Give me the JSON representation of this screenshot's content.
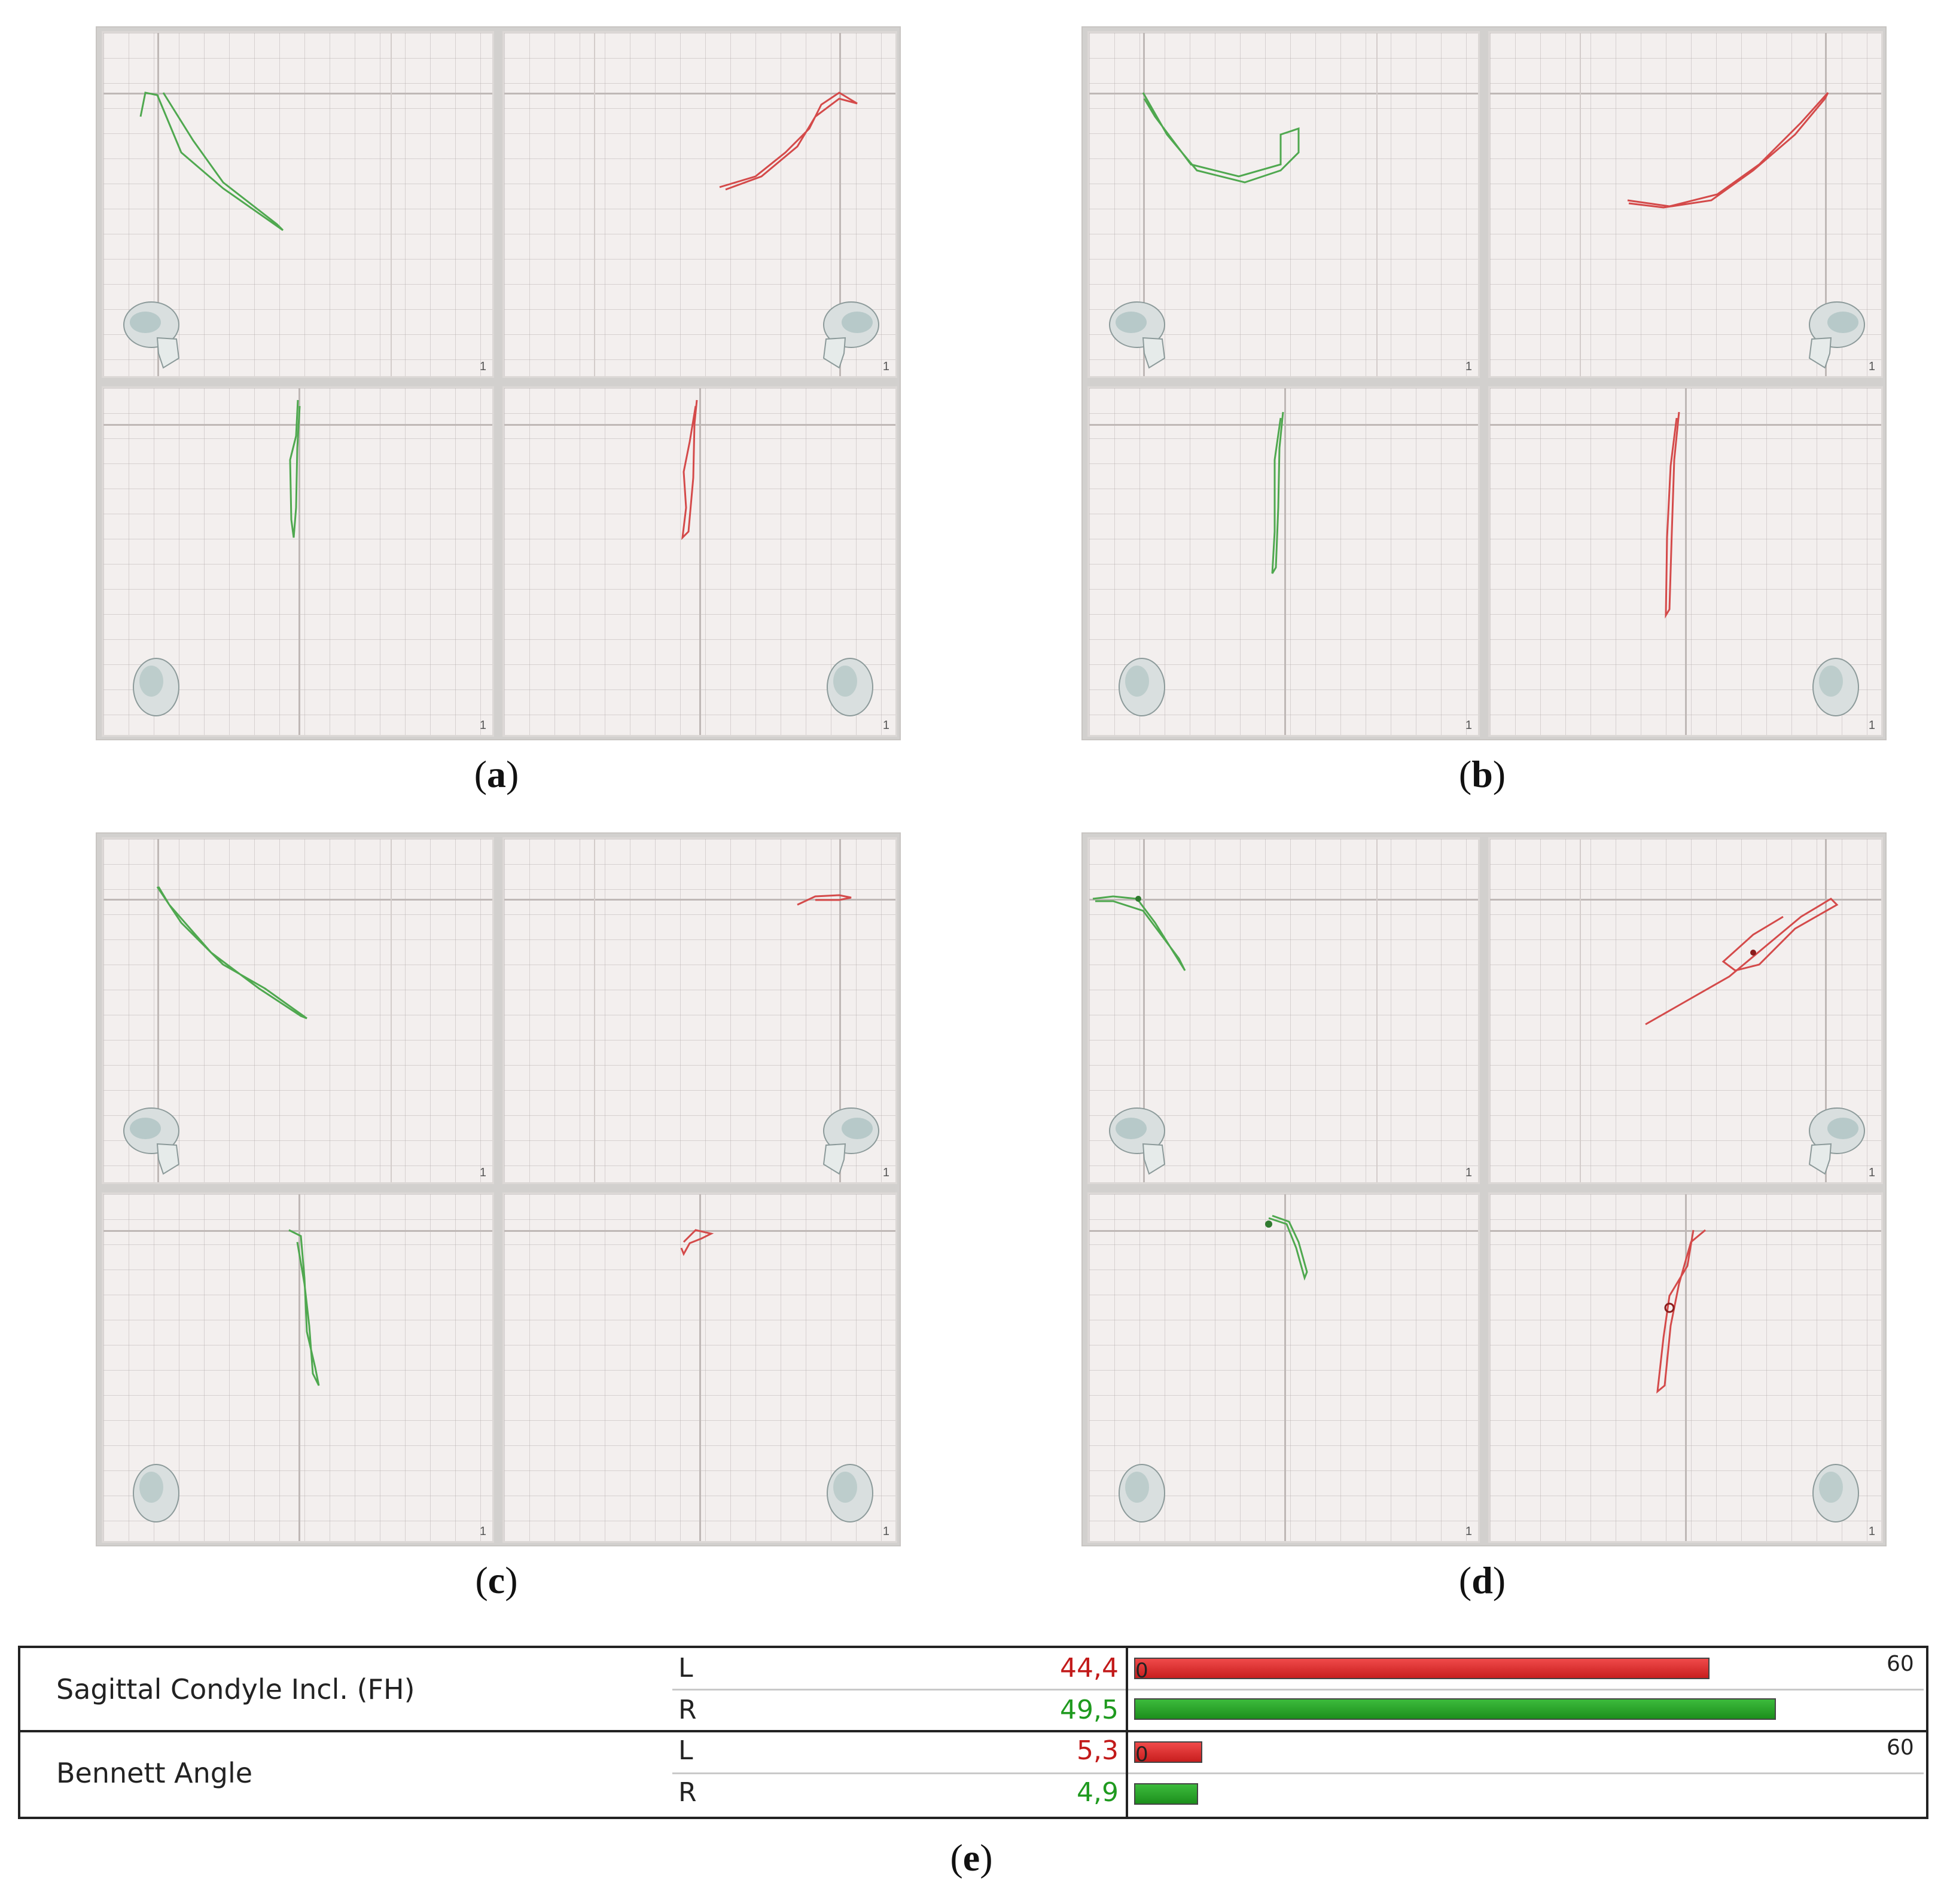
{
  "panels": [
    {
      "id": "a",
      "caption": "a",
      "scale_labels": [
        "1",
        "1",
        "1",
        "1"
      ]
    },
    {
      "id": "b",
      "caption": "b",
      "scale_labels": [
        "1",
        "1",
        "1",
        "1"
      ]
    },
    {
      "id": "c",
      "caption": "c",
      "scale_labels": [
        "1",
        "1",
        "1",
        "1"
      ]
    },
    {
      "id": "d",
      "caption": "d",
      "scale_labels": [
        "1",
        "1",
        "1",
        "1"
      ]
    }
  ],
  "table": {
    "caption": "e",
    "rows": [
      {
        "label": "Sagittal Condyle Incl. (FH)",
        "max": "60",
        "zero": "0",
        "left": {
          "side": "L",
          "value": "44,4",
          "fraction": 0.74
        },
        "right": {
          "side": "R",
          "value": "49,5",
          "fraction": 0.825
        }
      },
      {
        "label": "Bennett Angle",
        "max": "60",
        "zero": "0",
        "left": {
          "side": "L",
          "value": "5,3",
          "fraction": 0.088
        },
        "right": {
          "side": "R",
          "value": "4,9",
          "fraction": 0.082
        }
      }
    ]
  },
  "colors": {
    "left_trace": "#cf3b3b",
    "right_trace": "#3f9e3f",
    "left_value": "#c21a1a",
    "right_value": "#1f9a1f"
  },
  "icons": {
    "skull_side": "skull-lateral-icon",
    "skull_front": "skull-frontal-icon"
  }
}
